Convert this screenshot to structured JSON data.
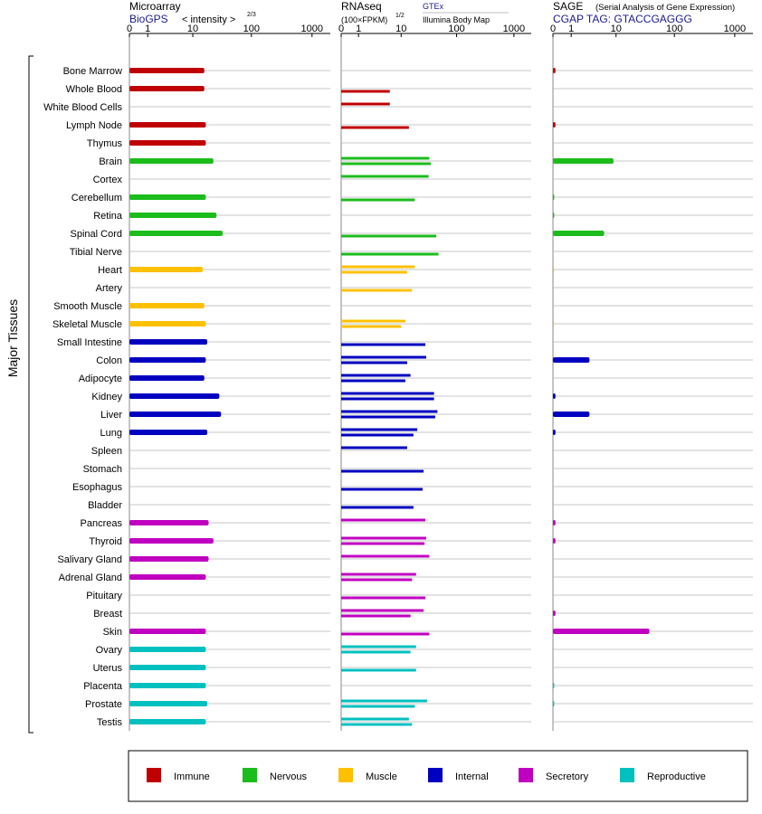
{
  "header": {
    "microarray": "Microarray",
    "biogps": "BioGPS",
    "intensity": "< intensity >",
    "intensity_exp": "2/3",
    "rnaseq": "RNAseq",
    "fpkm": "(100×FPKM)",
    "fpkm_exp": "1/2",
    "gtex": "GTEx",
    "illumina": "Illumina Body Map",
    "sage": "SAGE",
    "sage_full": "(Serial Analysis of Gene Expression)",
    "cgap": "CGAP TAG: GTACCGAGGG",
    "y_group_label": "Major Tissues"
  },
  "colors": {
    "Immune": "#c00000",
    "Nervous": "#1cbc1c",
    "Muscle": "#ffc000",
    "Internal": "#0000c0",
    "Secretory": "#c000c0",
    "Reproductive": "#00c0c0"
  },
  "legend": [
    {
      "label": "Immune",
      "color": "#c00000"
    },
    {
      "label": "Nervous",
      "color": "#1cbc1c"
    },
    {
      "label": "Muscle",
      "color": "#ffc000"
    },
    {
      "label": "Internal",
      "color": "#0000c0"
    },
    {
      "label": "Secretory",
      "color": "#c000c0"
    },
    {
      "label": "Reproductive",
      "color": "#00c0c0"
    }
  ],
  "chart_data": {
    "type": "bar",
    "orientation": "horizontal",
    "x_ticks": [
      "0",
      "1",
      "10",
      "100",
      "1000"
    ],
    "x_tick_values": [
      0,
      1,
      10,
      100,
      1000
    ],
    "xlim": [
      0,
      1000
    ],
    "categories": [
      "Bone Marrow",
      "Whole Blood",
      "White Blood Cells",
      "Lymph Node",
      "Thymus",
      "Brain",
      "Cortex",
      "Cerebellum",
      "Retina",
      "Spinal Cord",
      "Tibial Nerve",
      "Heart",
      "Artery",
      "Smooth Muscle",
      "Skeletal Muscle",
      "Small Intestine",
      "Colon",
      "Adipocyte",
      "Kidney",
      "Liver",
      "Lung",
      "Spleen",
      "Stomach",
      "Esophagus",
      "Bladder",
      "Pancreas",
      "Thyroid",
      "Salivary Gland",
      "Adrenal Gland",
      "Pituitary",
      "Breast",
      "Skin",
      "Ovary",
      "Uterus",
      "Placenta",
      "Prostate",
      "Testis"
    ],
    "groups": [
      "Immune",
      "Immune",
      "Immune",
      "Immune",
      "Immune",
      "Nervous",
      "Nervous",
      "Nervous",
      "Nervous",
      "Nervous",
      "Nervous",
      "Muscle",
      "Muscle",
      "Muscle",
      "Muscle",
      "Internal",
      "Internal",
      "Internal",
      "Internal",
      "Internal",
      "Internal",
      "Internal",
      "Internal",
      "Internal",
      "Internal",
      "Secretory",
      "Secretory",
      "Secretory",
      "Secretory",
      "Secretory",
      "Secretory",
      "Secretory",
      "Reproductive",
      "Reproductive",
      "Reproductive",
      "Reproductive",
      "Reproductive"
    ],
    "panels": [
      {
        "name": "Microarray",
        "values": [
          16,
          16,
          null,
          17,
          17,
          23,
          null,
          17,
          26,
          33,
          null,
          15,
          null,
          16,
          17,
          18,
          17,
          16,
          29,
          31,
          18,
          null,
          null,
          null,
          null,
          19,
          23,
          19,
          17,
          null,
          null,
          17,
          17,
          17,
          17,
          18,
          17
        ]
      },
      {
        "name": "RNAseq",
        "values": [
          [
            null,
            null
          ],
          [
            null,
            6
          ],
          [
            6,
            null
          ],
          [
            null,
            14
          ],
          [
            null,
            null
          ],
          [
            33,
            35
          ],
          [
            32,
            null
          ],
          [
            null,
            18
          ],
          [
            null,
            null
          ],
          [
            null,
            44
          ],
          [
            null,
            48
          ],
          [
            18,
            13
          ],
          [
            null,
            16
          ],
          [
            null,
            null
          ],
          [
            12,
            10
          ],
          [
            null,
            28
          ],
          [
            29,
            13
          ],
          [
            15,
            12
          ],
          [
            40,
            40
          ],
          [
            46,
            42
          ],
          [
            20,
            17
          ],
          [
            13,
            null
          ],
          [
            null,
            26
          ],
          [
            null,
            25
          ],
          [
            null,
            17
          ],
          [
            28,
            null
          ],
          [
            29,
            27
          ],
          [
            33,
            null
          ],
          [
            19,
            16
          ],
          [
            null,
            28
          ],
          [
            26,
            15
          ],
          [
            null,
            33
          ],
          [
            19,
            15
          ],
          [
            null,
            19
          ],
          [
            null,
            null
          ],
          [
            30,
            18
          ],
          [
            14,
            16
          ]
        ]
      },
      {
        "name": "SAGE",
        "values": [
          0.1,
          null,
          null,
          0.1,
          null,
          9,
          null,
          0.05,
          0.05,
          6,
          null,
          0.02,
          null,
          null,
          0.02,
          null,
          3,
          null,
          0.1,
          3,
          0.1,
          null,
          null,
          null,
          null,
          0.1,
          0.1,
          null,
          null,
          null,
          0.1,
          38,
          null,
          null,
          0.05,
          0.05,
          null
        ]
      }
    ]
  }
}
